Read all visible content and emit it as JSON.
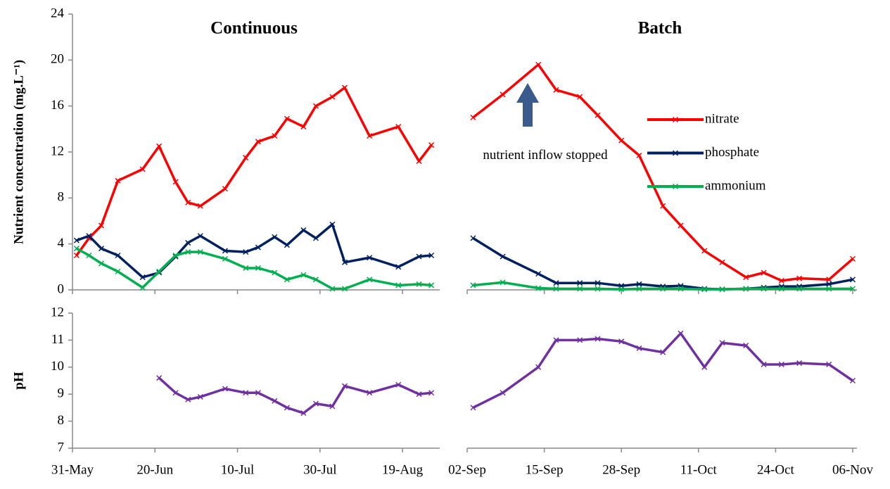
{
  "chart_data": [
    {
      "type": "line",
      "title": "Continuous",
      "ylabel": "Nutrient concentration (mg.L⁻¹)",
      "x": [
        "01-Jun",
        "04-Jun",
        "07-Jun",
        "11-Jun",
        "17-Jun",
        "21-Jun",
        "25-Jun",
        "28-Jun",
        "01-Jul",
        "07-Jul",
        "12-Jul",
        "15-Jul",
        "19-Jul",
        "22-Jul",
        "26-Jul",
        "29-Jul",
        "02-Aug",
        "05-Aug",
        "11-Aug",
        "18-Aug",
        "23-Aug",
        "26-Aug"
      ],
      "xlim": [
        "31-May",
        "27-Aug"
      ],
      "ylim": [
        0,
        24
      ],
      "yticks": [
        0,
        4,
        8,
        12,
        16,
        20,
        24
      ],
      "series": [
        {
          "name": "nitrate",
          "color": "#ff0000",
          "values": [
            3.0,
            4.5,
            5.6,
            9.5,
            10.5,
            12.5,
            9.4,
            7.6,
            7.3,
            8.8,
            11.5,
            12.9,
            13.4,
            14.9,
            14.2,
            16.0,
            16.8,
            17.6,
            13.4,
            14.2,
            11.2,
            12.6
          ]
        },
        {
          "name": "phosphate",
          "color": "#002060",
          "values": [
            4.3,
            4.7,
            3.6,
            3.0,
            1.1,
            1.5,
            2.9,
            4.1,
            4.7,
            3.4,
            3.3,
            3.7,
            4.6,
            3.9,
            5.2,
            4.5,
            5.7,
            2.4,
            2.8,
            2.0,
            2.9,
            3.0
          ]
        },
        {
          "name": "ammonium",
          "color": "#00b050",
          "values": [
            3.6,
            3.0,
            2.3,
            1.6,
            0.2,
            1.6,
            3.0,
            3.3,
            3.3,
            2.7,
            1.9,
            1.9,
            1.5,
            0.9,
            1.3,
            0.9,
            0.1,
            0.1,
            0.9,
            0.4,
            0.5,
            0.4
          ]
        }
      ]
    },
    {
      "type": "line",
      "title": "Batch",
      "annotation": "nutrient inflow stopped",
      "legend": "upper right",
      "x": [
        "03-Sep",
        "08-Sep",
        "14-Sep",
        "17-Sep",
        "21-Sep",
        "24-Sep",
        "28-Sep",
        "01-Oct",
        "05-Oct",
        "08-Oct",
        "12-Oct",
        "15-Oct",
        "19-Oct",
        "22-Oct",
        "25-Oct",
        "28-Oct",
        "02-Nov",
        "06-Nov"
      ],
      "xlim": [
        "02-Sep",
        "06-Nov"
      ],
      "ylim": [
        0,
        24
      ],
      "series": [
        {
          "name": "nitrate",
          "color": "#ff0000",
          "values": [
            15.0,
            17.0,
            19.6,
            17.4,
            16.8,
            15.2,
            13.0,
            11.7,
            7.3,
            5.6,
            3.4,
            2.4,
            1.1,
            1.5,
            0.8,
            1.0,
            0.9,
            2.7
          ]
        },
        {
          "name": "phosphate",
          "color": "#002060",
          "values": [
            4.5,
            2.9,
            1.4,
            0.6,
            0.6,
            0.6,
            0.35,
            0.5,
            0.3,
            0.35,
            0.1,
            0.05,
            0.1,
            0.2,
            0.3,
            0.3,
            0.5,
            0.9
          ]
        },
        {
          "name": "ammonium",
          "color": "#00b050",
          "values": [
            0.4,
            0.65,
            0.15,
            0.1,
            0.1,
            0.1,
            0.05,
            0.1,
            0.1,
            0.1,
            0.05,
            0.05,
            0.1,
            0.1,
            0.1,
            0.1,
            0.1,
            0.1
          ]
        }
      ]
    },
    {
      "type": "line",
      "ylabel": "pH",
      "x": [
        "21-Jun",
        "25-Jun",
        "28-Jun",
        "01-Jul",
        "07-Jul",
        "12-Jul",
        "15-Jul",
        "19-Jul",
        "22-Jul",
        "26-Jul",
        "29-Jul",
        "02-Aug",
        "05-Aug",
        "11-Aug",
        "18-Aug",
        "23-Aug",
        "26-Aug"
      ],
      "xlim": [
        "31-May",
        "27-Aug"
      ],
      "xticks": [
        "31-May",
        "20-Jun",
        "10-Jul",
        "30-Jul",
        "19-Aug"
      ],
      "ylim": [
        7,
        12
      ],
      "yticks": [
        7,
        8,
        9,
        10,
        11,
        12
      ],
      "series": [
        {
          "color": "#7030a0",
          "values": [
            9.6,
            9.05,
            8.8,
            8.9,
            9.2,
            9.05,
            9.05,
            8.75,
            8.5,
            8.3,
            8.65,
            8.55,
            9.3,
            9.05,
            9.35,
            9.0,
            9.05
          ]
        }
      ]
    },
    {
      "type": "line",
      "x": [
        "03-Sep",
        "08-Sep",
        "14-Sep",
        "17-Sep",
        "21-Sep",
        "24-Sep",
        "28-Sep",
        "01-Oct",
        "05-Oct",
        "08-Oct",
        "12-Oct",
        "15-Oct",
        "19-Oct",
        "22-Oct",
        "25-Oct",
        "28-Oct",
        "02-Nov",
        "06-Nov"
      ],
      "xlim": [
        "02-Sep",
        "06-Nov"
      ],
      "xticks": [
        "02-Sep",
        "15-Sep",
        "28-Sep",
        "11-Oct",
        "24-Oct",
        "06-Nov"
      ],
      "ylim": [
        7,
        12
      ],
      "series": [
        {
          "color": "#7030a0",
          "values": [
            8.5,
            9.05,
            10.0,
            11.0,
            11.0,
            11.05,
            10.95,
            10.7,
            10.55,
            11.25,
            10.0,
            10.9,
            10.8,
            10.1,
            10.1,
            10.15,
            10.1,
            9.5
          ]
        }
      ]
    }
  ]
}
